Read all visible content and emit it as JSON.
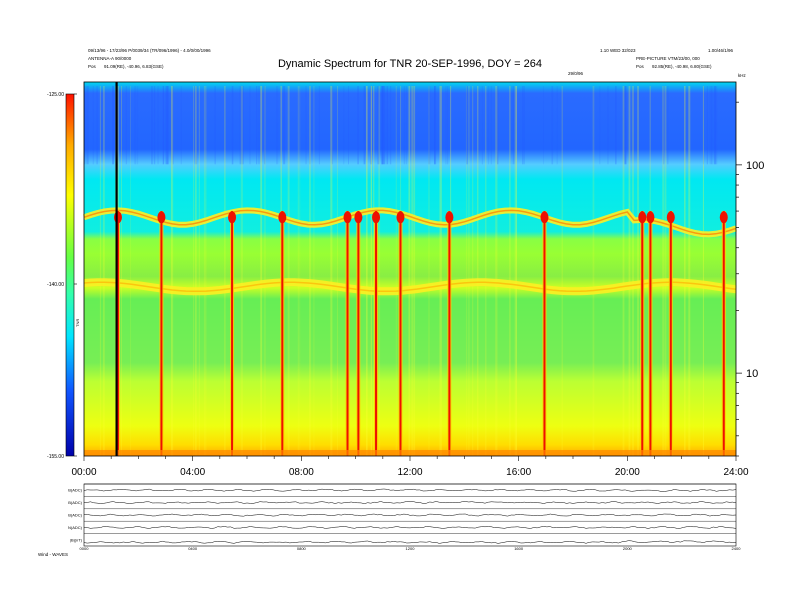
{
  "header": {
    "title": "Dynamic Spectrum for TNR 20-SEP-1996, DOY = 264",
    "left_line1": "09/13/96 - 17/23/96 P/0039/34 (TR/096/1996) - 4.0/0/00/1996",
    "left_line2": "ANTENNA-A 90/0000",
    "left_line3_label": "Pos",
    "left_line3_value": "91.09(RE), -40.96, 6.83(GSE)",
    "right_line1": "1.10 WED 32/023",
    "right_line1b": "1.00/46/1/96",
    "right_line2": "PRE-PICTURE VTM/23/00, 000",
    "right_line3_label": "Pos",
    "right_line3_value": "92.85(RE), -40.98, 6.80(GSE)",
    "center_small": "29/0/96",
    "kHz_label": "kHz",
    "footer_left": "Wind - WAVES"
  },
  "colorbar": {
    "ticks": [
      "-125.00",
      "-140.00",
      "-155.00"
    ],
    "label": "TNR"
  },
  "chart_data": [
    {
      "type": "heatmap",
      "title": "Dynamic Spectrum for TNR 20-SEP-1996, DOY = 264",
      "x_tick_labels": [
        "00:00",
        "04:00",
        "08:00",
        "12:00",
        "16:00",
        "20:00",
        "24:00"
      ],
      "x_range_hours": [
        0,
        24
      ],
      "y_scale": "log",
      "y_unit": "kHz",
      "y_tick_labels": [
        "100",
        "10"
      ],
      "y_range_khz": [
        4,
        250
      ],
      "color_range_db": [
        -155,
        -125
      ],
      "marker_line_hour": 1.2,
      "features": {
        "upper_band_khz": 56,
        "lower_band_khz": 26,
        "bursts_hours": [
          1.25,
          2.85,
          5.45,
          7.3,
          9.7,
          10.1,
          10.75,
          11.65,
          13.45,
          16.95,
          20.55,
          20.85,
          21.6,
          23.55
        ]
      }
    },
    {
      "type": "line",
      "x_tick_labels": [
        "0000",
        "0400",
        "0800",
        "1200",
        "1600",
        "2000",
        "2400"
      ],
      "series": [
        {
          "name": "B(ADC)",
          "values": [
            0.5,
            0.5,
            0.52,
            0.5,
            0.5,
            0.48,
            0.5
          ]
        },
        {
          "name": "B(ADC)",
          "values": [
            0.5,
            0.5,
            0.5,
            0.52,
            0.5,
            0.5,
            0.5
          ]
        },
        {
          "name": "B(ADC)",
          "values": [
            0.5,
            0.49,
            0.5,
            0.5,
            0.5,
            0.5,
            0.5
          ]
        },
        {
          "name": "N(ADC)",
          "values": [
            0.5,
            0.5,
            0.5,
            0.5,
            0.5,
            0.5,
            0.5
          ]
        },
        {
          "name": "|B|(nT)",
          "values": [
            0.3,
            0.3,
            0.32,
            0.3,
            0.3,
            0.35,
            0.3
          ]
        }
      ]
    }
  ]
}
